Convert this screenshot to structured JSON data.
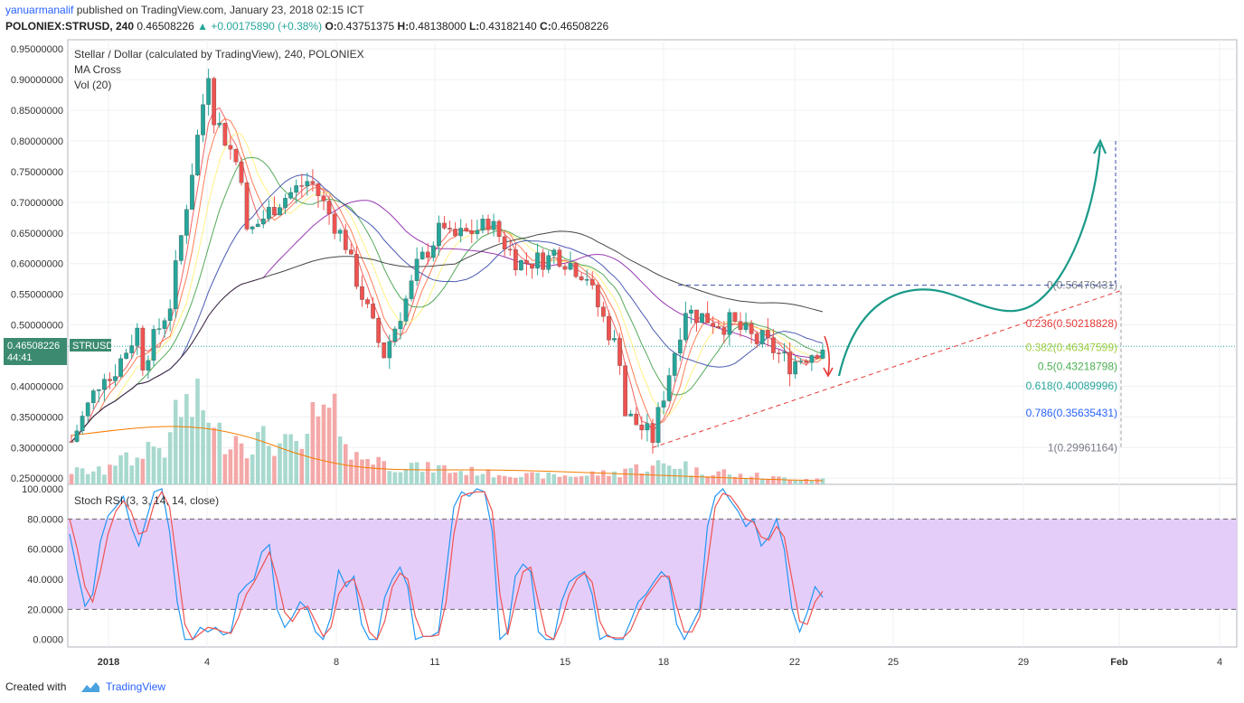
{
  "header": {
    "author": "yanuarmanalif",
    "published_text": "published on TradingView.com, January 23, 2018 02:15 ICT",
    "symbol": "POLONIEX:STRUSD, 240",
    "last": "0.46508226",
    "change": "▲ +0.00175890 (+0.38%)",
    "o_label": "O:",
    "o": "0.43751375",
    "h_label": "H:",
    "h": "0.48138000",
    "l_label": "L:",
    "l": "0.43182140",
    "c_label": "C:",
    "c": "0.46508226"
  },
  "legend": {
    "line1": "Stellar / Dollar (calculated by TradingView), 240, POLONIEX",
    "line2": "MA Cross",
    "line3": "Vol (20)",
    "rsi": "Stoch RSI (3, 3, 14, 14, close)"
  },
  "price_tag": {
    "value": "0.46508226",
    "symbol": "STRUSD",
    "timer": "44:41"
  },
  "footer": {
    "created": "Created with",
    "brand": "TradingView"
  },
  "colors": {
    "bull": "#26a69a",
    "bear": "#ef5350",
    "vol_bull": "#a8d9cf",
    "vol_bear": "#f4a8a8",
    "rsi_band": "#e1c4f9",
    "teal_arrow": "#1a9a88",
    "red_arrow": "#e53935"
  },
  "chart_data": [
    {
      "type": "candlestick",
      "title": "Stellar / Dollar (calculated by TradingView), 240, POLONIEX",
      "y_ticks": [
        "0.95000000",
        "0.90000000",
        "0.85000000",
        "0.80000000",
        "0.75000000",
        "0.70000000",
        "0.65000000",
        "0.60000000",
        "0.55000000",
        "0.50000000",
        "0.40000000",
        "0.35000000",
        "0.30000000",
        "0.25000000"
      ],
      "x_ticks": [
        "2018",
        "4",
        "8",
        "11",
        "15",
        "18",
        "22",
        "25",
        "29",
        "Feb",
        "4"
      ],
      "ylim": [
        0.24,
        0.965
      ],
      "last_price": 0.46508226,
      "price_path": [
        [
          0.31,
          0.43
        ],
        [
          0.4,
          0.5
        ],
        [
          0.43,
          0.55
        ],
        [
          0.58,
          0.92
        ],
        [
          0.86,
          0.74
        ],
        [
          0.64,
          0.7
        ],
        [
          0.7,
          0.74
        ],
        [
          0.73,
          0.63
        ],
        [
          0.62,
          0.46
        ],
        [
          0.44,
          0.58
        ],
        [
          0.59,
          0.68
        ],
        [
          0.64,
          0.66
        ],
        [
          0.68,
          0.6
        ],
        [
          0.6,
          0.61
        ],
        [
          0.62,
          0.58
        ],
        [
          0.57,
          0.44
        ],
        [
          0.36,
          0.31
        ],
        [
          0.34,
          0.56
        ],
        [
          0.52,
          0.5
        ],
        [
          0.51,
          0.47
        ],
        [
          0.48,
          0.43
        ],
        [
          0.44,
          0.47
        ]
      ],
      "volume_path": [
        0.12,
        0.22,
        0.35,
        0.7,
        0.45,
        0.4,
        0.35,
        0.6,
        0.25,
        0.18,
        0.15,
        0.12,
        0.1,
        0.08,
        0.08,
        0.1,
        0.15,
        0.18,
        0.12,
        0.08,
        0.06,
        0.05
      ],
      "fibonacci": [
        {
          "label": "0(0.56476431)",
          "value": 0.56476431,
          "color": "#787b86"
        },
        {
          "label": "0.236(0.50218828)",
          "value": 0.50218828,
          "color": "#e53935"
        },
        {
          "label": "0.382(0.46347599)",
          "value": 0.46347599,
          "color": "#9ccc3c"
        },
        {
          "label": "0.5(0.43218798)",
          "value": 0.43218798,
          "color": "#4caf50"
        },
        {
          "label": "0.618(0.40089996)",
          "value": 0.40089996,
          "color": "#26a69a"
        },
        {
          "label": "0.786(0.35635431)",
          "value": 0.35635431,
          "color": "#2962ff"
        },
        {
          "label": "1(0.29961164)",
          "value": 0.29961164,
          "color": "#787b86"
        }
      ]
    },
    {
      "type": "line",
      "title": "Stoch RSI (3, 3, 14, 14, close)",
      "y_ticks": [
        "100.0000",
        "80.0000",
        "60.0000",
        "40.0000",
        "20.0000",
        "0.0000"
      ],
      "ylim": [
        -5,
        103
      ],
      "bands": [
        20,
        80
      ],
      "series": [
        {
          "color": "#2196f3",
          "values": [
            70,
            45,
            22,
            30,
            65,
            82,
            88,
            95,
            75,
            62,
            80,
            98,
            100,
            72,
            25,
            0,
            0,
            8,
            5,
            8,
            3,
            5,
            30,
            36,
            40,
            58,
            63,
            20,
            8,
            15,
            25,
            20,
            5,
            0,
            15,
            46,
            35,
            42,
            10,
            0,
            0,
            28,
            40,
            48,
            35,
            0,
            2,
            2,
            5,
            45,
            88,
            98,
            95,
            100,
            98,
            72,
            0,
            5,
            42,
            50,
            45,
            5,
            0,
            0,
            25,
            38,
            42,
            45,
            30,
            0,
            3,
            0,
            0,
            12,
            25,
            30,
            38,
            45,
            40,
            10,
            0,
            10,
            20,
            75,
            95,
            100,
            92,
            85,
            75,
            80,
            62,
            68,
            80,
            60,
            20,
            5,
            18,
            35,
            28
          ]
        },
        {
          "color": "#ef5350",
          "values": [
            80,
            60,
            35,
            25,
            45,
            70,
            85,
            92,
            85,
            70,
            72,
            90,
            98,
            88,
            50,
            10,
            0,
            4,
            8,
            7,
            5,
            4,
            15,
            30,
            38,
            48,
            58,
            40,
            18,
            12,
            20,
            22,
            12,
            2,
            8,
            30,
            38,
            40,
            25,
            5,
            0,
            12,
            35,
            44,
            40,
            15,
            2,
            2,
            3,
            25,
            70,
            95,
            97,
            98,
            98,
            85,
            30,
            3,
            25,
            45,
            48,
            25,
            3,
            0,
            12,
            30,
            40,
            44,
            38,
            12,
            2,
            1,
            1,
            6,
            18,
            28,
            35,
            42,
            42,
            22,
            5,
            5,
            15,
            50,
            88,
            97,
            95,
            88,
            80,
            78,
            68,
            66,
            75,
            68,
            40,
            12,
            10,
            25,
            32
          ]
        }
      ]
    }
  ]
}
